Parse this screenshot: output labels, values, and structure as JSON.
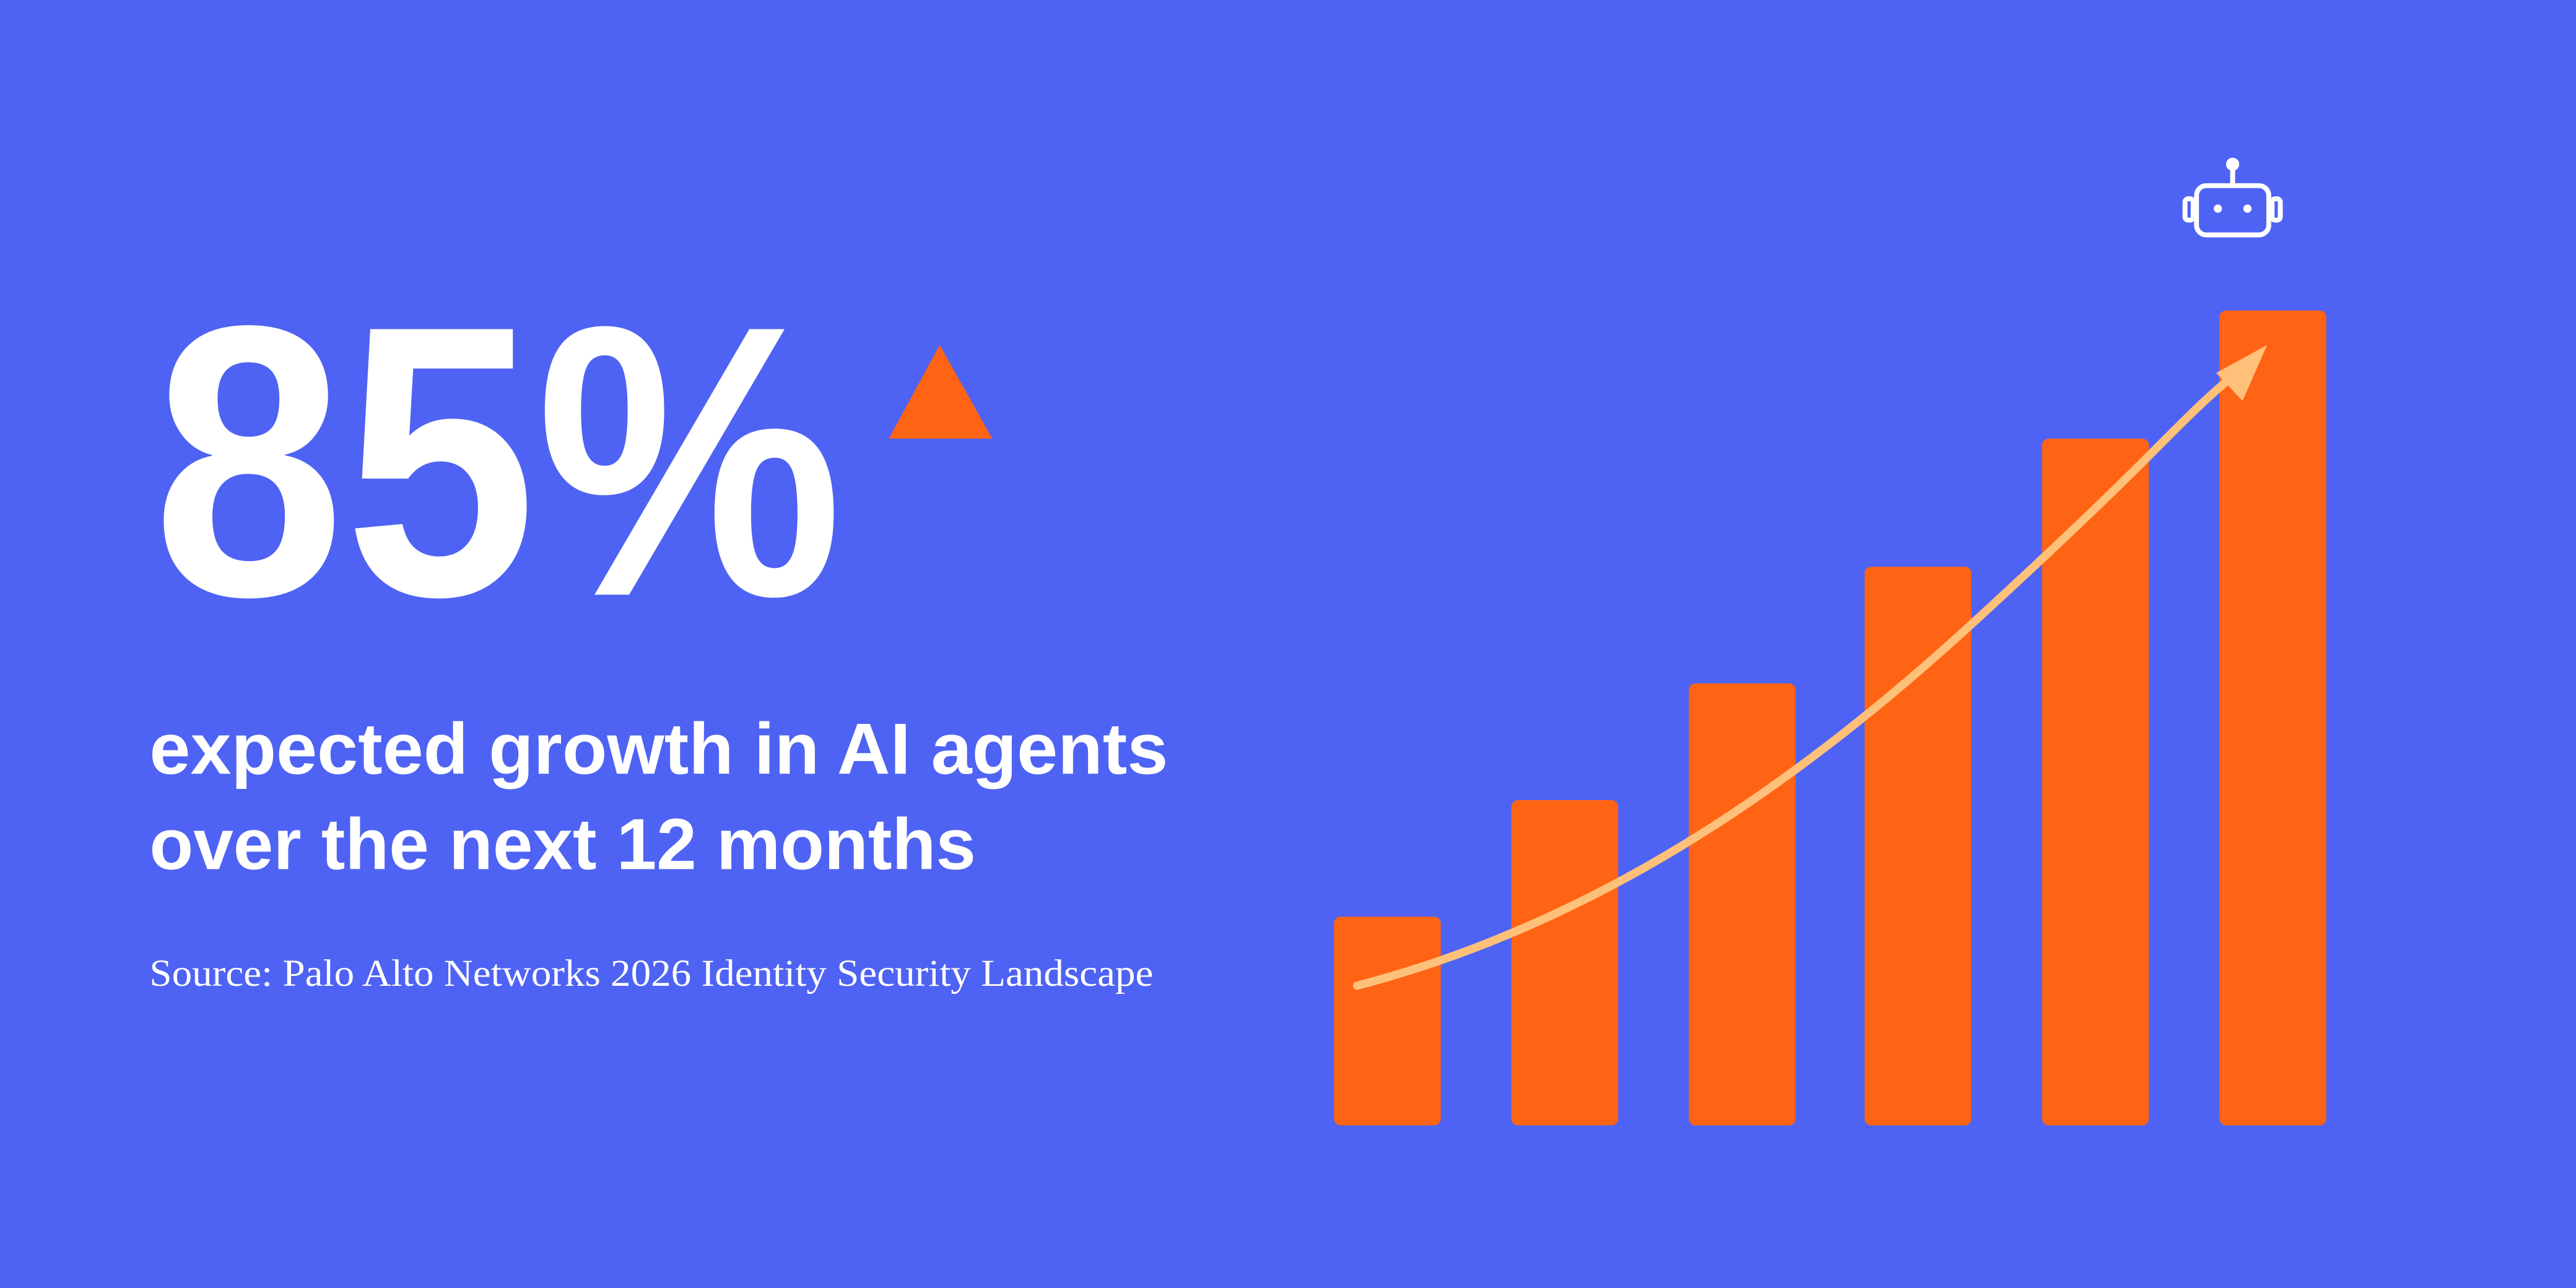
{
  "headline": {
    "stat": "85%"
  },
  "description": {
    "lines": [
      "expected growth in AI agents",
      "over the next 12 months"
    ]
  },
  "source": "Source: Palo Alto Networks 2026 Identity Security Landscape"
}
